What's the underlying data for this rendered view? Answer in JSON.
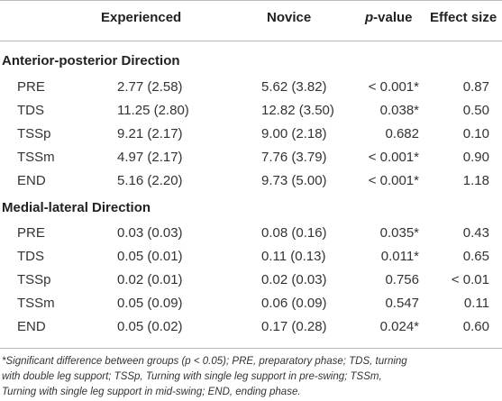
{
  "table": {
    "headers": {
      "col_label": "",
      "experienced": "Experienced",
      "novice": "Novice",
      "p_italic": "p",
      "p_suffix": "-value",
      "effect_size": "Effect size"
    },
    "sections": [
      {
        "title": "Anterior-posterior Direction",
        "rows": [
          {
            "label": "PRE",
            "experienced": "2.77 (2.58)",
            "novice": "5.62 (3.82)",
            "p_value": "< 0.001*",
            "effect_size": "0.87"
          },
          {
            "label": "TDS",
            "experienced": "11.25 (2.80)",
            "novice": "12.82 (3.50)",
            "p_value": "0.038*",
            "effect_size": "0.50"
          },
          {
            "label": "TSSp",
            "experienced": "9.21 (2.17)",
            "novice": "9.00 (2.18)",
            "p_value": "0.682",
            "effect_size": "0.10"
          },
          {
            "label": "TSSm",
            "experienced": "4.97 (2.17)",
            "novice": "7.76 (3.79)",
            "p_value": "< 0.001*",
            "effect_size": "0.90"
          },
          {
            "label": "END",
            "experienced": "5.16 (2.20)",
            "novice": "9.73 (5.00)",
            "p_value": "< 0.001*",
            "effect_size": "1.18"
          }
        ]
      },
      {
        "title": "Medial-lateral Direction",
        "rows": [
          {
            "label": "PRE",
            "experienced": "0.03 (0.03)",
            "novice": "0.08 (0.16)",
            "p_value": "0.035*",
            "effect_size": "0.43"
          },
          {
            "label": "TDS",
            "experienced": "0.05 (0.01)",
            "novice": "0.11 (0.13)",
            "p_value": "0.011*",
            "effect_size": "0.65"
          },
          {
            "label": "TSSp",
            "experienced": "0.02 (0.01)",
            "novice": "0.02 (0.03)",
            "p_value": "0.756",
            "effect_size": "< 0.01"
          },
          {
            "label": "TSSm",
            "experienced": "0.05 (0.09)",
            "novice": "0.06 (0.09)",
            "p_value": "0.547",
            "effect_size": "0.11"
          },
          {
            "label": "END",
            "experienced": "0.05 (0.02)",
            "novice": "0.17 (0.28)",
            "p_value": "0.024*",
            "effect_size": "0.60"
          }
        ]
      }
    ]
  },
  "footnote": {
    "line1": "*Significant difference between groups (p < 0.05); PRE, preparatory phase; TDS, turning",
    "line2": "with double leg support; TSSp, Turning with single leg support in pre-swing; TSSm,",
    "line3": "Turning with single leg support in mid-swing; END, ending phase."
  }
}
